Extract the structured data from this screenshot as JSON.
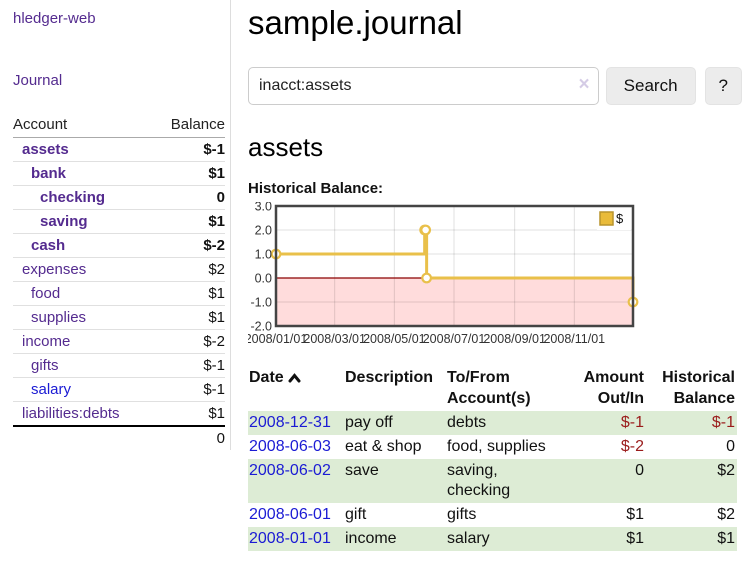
{
  "colors": {
    "purple": "#542b8f",
    "link_blue": "#1b1bd4",
    "negative": "#9a1b1b",
    "negative_soft": "#bd6e6e",
    "row_green": "#ddecd5"
  },
  "sidebar": {
    "brand": "hledger-web",
    "journal_label": "Journal",
    "accounts_table": {
      "col_account": "Account",
      "col_balance": "Balance",
      "rows": [
        {
          "name": "assets",
          "balance": "$-1",
          "level": 1,
          "bold": true,
          "neg": "strong"
        },
        {
          "name": "bank",
          "balance": "$1",
          "level": 2,
          "bold": true
        },
        {
          "name": "checking",
          "balance": "0",
          "level": 3,
          "bold": true
        },
        {
          "name": "saving",
          "balance": "$1",
          "level": 3,
          "bold": true
        },
        {
          "name": "cash",
          "balance": "$-2",
          "level": 2,
          "bold": true,
          "neg": "strong"
        },
        {
          "name": "expenses",
          "balance": "$2",
          "level": 1
        },
        {
          "name": "food",
          "balance": "$1",
          "level": 2
        },
        {
          "name": "supplies",
          "balance": "$1",
          "level": 2
        },
        {
          "name": "income",
          "balance": "$-2",
          "level": 1,
          "neg": "soft"
        },
        {
          "name": "gifts",
          "balance": "$-1",
          "level": 2,
          "neg": "soft"
        },
        {
          "name": "salary",
          "balance": "$-1",
          "level": 2,
          "neg": "soft",
          "link": "blue"
        },
        {
          "name": "liabilities:debts",
          "balance": "$1",
          "level": 1
        }
      ],
      "total": "0"
    }
  },
  "main": {
    "title": "sample.journal",
    "search": {
      "value": "inacct:assets",
      "clear_icon": "×",
      "button_label": "Search",
      "help_label": "?"
    },
    "account_heading": "assets",
    "chart_label": "Historical Balance:"
  },
  "chart_data": {
    "type": "line",
    "step": true,
    "title": "Historical Balance",
    "series": [
      {
        "name": "$",
        "x": [
          "2008-01-01",
          "2008-06-01",
          "2008-06-02",
          "2008-06-03",
          "2008-12-31"
        ],
        "y": [
          1,
          2,
          2,
          0,
          -1
        ]
      }
    ],
    "x_range": [
      "2008-01-01",
      "2008-12-31"
    ],
    "ylim": [
      -2,
      3
    ],
    "ytick_values": [
      3,
      2,
      1,
      0,
      -1,
      -2
    ],
    "ytick_labels": [
      "3.0",
      "2.0",
      "1.0",
      "0.0",
      "-1.0",
      "-2.0"
    ],
    "xtick_dates": [
      "2008-01-01",
      "2008-03-01",
      "2008-05-01",
      "2008-07-01",
      "2008-09-01",
      "2008-11-01"
    ],
    "xtick_labels": [
      "2008/01/01",
      "2008/03/01",
      "2008/05/01",
      "2008/07/01",
      "2008/09/01",
      "2008/11/01"
    ],
    "legend_position": "top-right",
    "grid": true,
    "line_color": "#e9c04a",
    "marker_fill": "#ffffff",
    "negative_region_color": "#ffdcdc",
    "zero_line_color": "#8b0000",
    "plot_border_color": "#444444",
    "legend_swatch_color": "#e9bb3a",
    "legend_swatch_border": "#b8942c",
    "tick_label_color": "#333333"
  },
  "register": {
    "headers": {
      "date": "Date",
      "sort": "ascending",
      "description": "Description",
      "account": "To/From Account(s)",
      "amount": "Amount Out/In",
      "balance": "Historical Balance"
    },
    "rows": [
      {
        "date": "2008-12-31",
        "description": "pay off",
        "account": "debts",
        "amount": "$-1",
        "balance": "$-1",
        "amount_neg": true,
        "balance_neg": true
      },
      {
        "date": "2008-06-03",
        "description": "eat & shop",
        "account": "food, supplies",
        "amount": "$-2",
        "balance": "0",
        "amount_neg": true,
        "balance_neg": false
      },
      {
        "date": "2008-06-02",
        "description": "save",
        "account": "saving, checking",
        "amount": "0",
        "balance": "$2",
        "amount_neg": false,
        "balance_neg": false
      },
      {
        "date": "2008-06-01",
        "description": "gift",
        "account": "gifts",
        "amount": "$1",
        "balance": "$2",
        "amount_neg": false,
        "balance_neg": false
      },
      {
        "date": "2008-01-01",
        "description": "income",
        "account": "salary",
        "amount": "$1",
        "balance": "$1",
        "amount_neg": false,
        "balance_neg": false
      }
    ]
  }
}
